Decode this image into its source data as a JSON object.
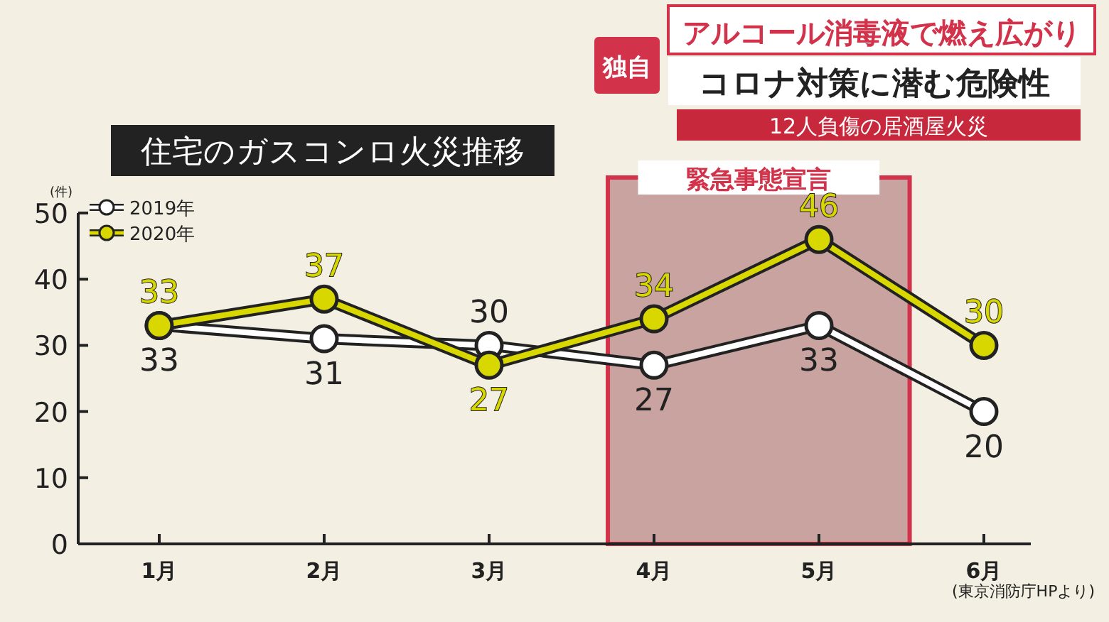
{
  "chart_data": {
    "type": "line",
    "title": "住宅のガスコンロ火災推移",
    "ylabel": "(件)",
    "categories": [
      "1月",
      "2月",
      "3月",
      "4月",
      "5月",
      "6月"
    ],
    "series": [
      {
        "name": "2019年",
        "color": "#ffffff",
        "values": [
          33,
          31,
          30,
          27,
          33,
          20
        ]
      },
      {
        "name": "2020年",
        "color": "#d8d800",
        "values": [
          33,
          37,
          27,
          34,
          46,
          30
        ]
      }
    ],
    "ylim": [
      0,
      50
    ],
    "yticks": [
      0,
      10,
      20,
      30,
      40,
      50
    ],
    "grid": false,
    "legend": "top left",
    "marker": "circle",
    "line_style": "solid",
    "data_labels": true,
    "bands": [
      {
        "axis": "x",
        "from": "4月",
        "to": "5月",
        "label": "緊急事態宣言",
        "color": "#d2334a"
      }
    ],
    "annotations": [
      "独自",
      "アルコール消毒液で燃え広がり",
      "コロナ対策に潜む危険性",
      "12人負傷の居酒屋火災",
      "(東京消防庁HPより)"
    ]
  }
}
